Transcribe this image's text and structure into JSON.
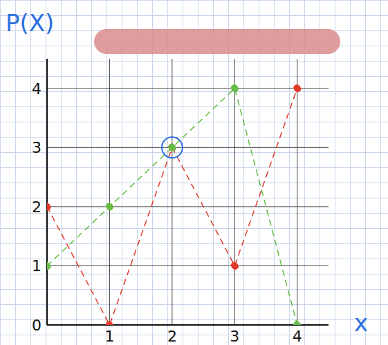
{
  "chart_data": {
    "type": "line",
    "ylabel": "P(X)",
    "xlabel": "x",
    "x": [
      0,
      1,
      2,
      3,
      4
    ],
    "series": [
      {
        "color": "#e3392b",
        "values": [
          2,
          0,
          3,
          1,
          4
        ],
        "marker": "circle",
        "line_style": "dashed"
      },
      {
        "color": "#66bb44",
        "values": [
          1,
          2,
          3,
          4,
          0
        ],
        "marker": "circle",
        "line_style": "dashed"
      }
    ],
    "xlim": [
      0,
      4.5
    ],
    "ylim": [
      0,
      4.5
    ],
    "xticks": [
      1,
      2,
      3,
      4
    ],
    "yticks": [
      0,
      1,
      2,
      3,
      4
    ],
    "grid": true,
    "highlight": {
      "x": 2,
      "y": 3,
      "color": "#2b6fe0"
    }
  }
}
